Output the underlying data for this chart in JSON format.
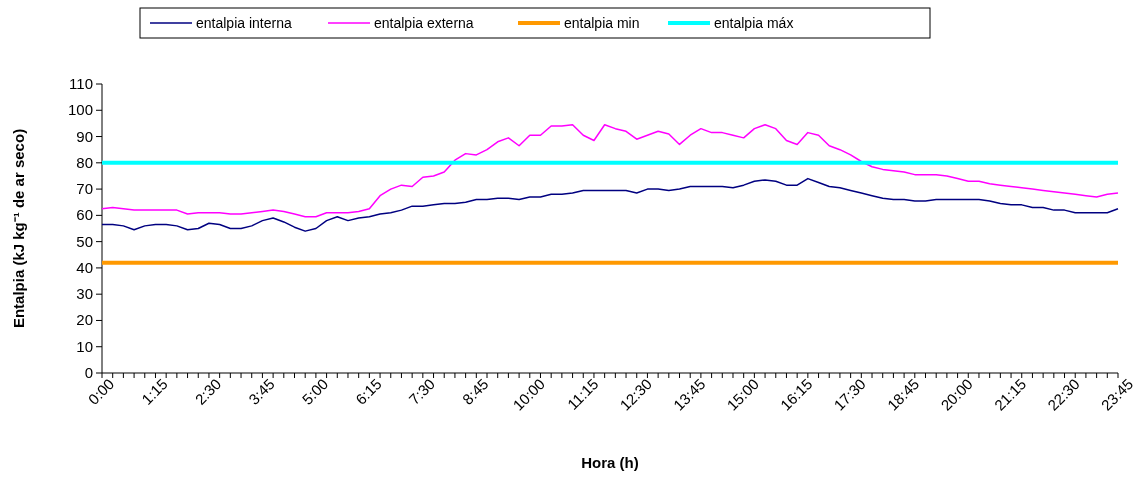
{
  "chart_data": {
    "type": "line",
    "xlabel": "Hora (h)",
    "ylabel": "Entalpia (kJ kg⁻¹ de ar seco)",
    "categories": [
      "0:00",
      null,
      null,
      null,
      null,
      "1:15",
      null,
      null,
      null,
      null,
      "2:30",
      null,
      null,
      null,
      null,
      "3:45",
      null,
      null,
      null,
      null,
      "5:00",
      null,
      null,
      null,
      null,
      "6:15",
      null,
      null,
      null,
      null,
      "7:30",
      null,
      null,
      null,
      null,
      "8:45",
      null,
      null,
      null,
      null,
      "10:00",
      null,
      null,
      null,
      null,
      "11:15",
      null,
      null,
      null,
      null,
      "12:30",
      null,
      null,
      null,
      null,
      "13:45",
      null,
      null,
      null,
      null,
      "15:00",
      null,
      null,
      null,
      null,
      "16:15",
      null,
      null,
      null,
      null,
      "17:30",
      null,
      null,
      null,
      null,
      "18:45",
      null,
      null,
      null,
      null,
      "20:00",
      null,
      null,
      null,
      null,
      "21:15",
      null,
      null,
      null,
      null,
      "22:30",
      null,
      null,
      null,
      null,
      "23:45"
    ],
    "ylim": [
      0,
      110
    ],
    "yticks": [
      0,
      10,
      20,
      30,
      40,
      50,
      60,
      70,
      80,
      90,
      100,
      110
    ],
    "legend": "top",
    "marker": "none",
    "series": [
      {
        "name": "entalpia interna",
        "color": "#000080",
        "values": [
          56.5,
          56.5,
          56,
          54.5,
          56,
          56.5,
          56.5,
          56,
          54.5,
          55,
          57,
          56.5,
          55,
          55,
          56,
          58,
          59,
          57.5,
          55.5,
          54,
          55,
          58,
          59.5,
          58,
          59,
          59.5,
          60.5,
          61,
          62,
          63.5,
          63.5,
          64,
          64.5,
          64.5,
          65,
          66,
          66,
          66.5,
          66.5,
          66,
          67,
          67,
          68,
          68,
          68.5,
          69.5,
          69.5,
          69.5,
          69.5,
          69.5,
          68.5,
          70,
          70,
          69.5,
          70,
          71,
          71,
          71,
          71,
          70.5,
          71.5,
          73,
          73.5,
          73,
          71.5,
          71.5,
          74,
          72.5,
          71,
          70.5,
          69.5,
          68.5,
          67.5,
          66.5,
          66,
          66,
          65.5,
          65.5,
          66,
          66,
          66,
          66,
          66,
          65.5,
          64.5,
          64,
          64,
          63,
          63,
          62,
          62,
          61,
          61,
          61,
          61,
          62.5
        ]
      },
      {
        "name": "entalpia externa",
        "color": "#ff00ff",
        "values": [
          62.5,
          63,
          62.5,
          62,
          62,
          62,
          62,
          62,
          60.5,
          61,
          61,
          61,
          60.5,
          60.5,
          61,
          61.5,
          62,
          61.5,
          60.5,
          59.5,
          59.5,
          61,
          61,
          61,
          61.5,
          62.5,
          67.5,
          70,
          71.5,
          71,
          74.5,
          75,
          76.5,
          81,
          83.5,
          83,
          85,
          88,
          89.5,
          86.5,
          90.5,
          90.5,
          94,
          94,
          94.5,
          90.5,
          88.5,
          94.5,
          93,
          92,
          89,
          90.5,
          92,
          91,
          87,
          90.5,
          93,
          91.5,
          91.5,
          90.5,
          89.5,
          93,
          94.5,
          93,
          88.5,
          87,
          91.5,
          90.5,
          86.5,
          85,
          83,
          80.5,
          78.5,
          77.5,
          77,
          76.5,
          75.5,
          75.5,
          75.5,
          75,
          74,
          73,
          73,
          72,
          71.5,
          71,
          70.5,
          70,
          69.5,
          69,
          68.5,
          68,
          67.5,
          67,
          68,
          68.5
        ]
      },
      {
        "name": "entalpia min",
        "color": "#ff9900",
        "values": [
          42,
          42,
          42,
          42,
          42,
          42,
          42,
          42,
          42,
          42,
          42,
          42,
          42,
          42,
          42,
          42,
          42,
          42,
          42,
          42,
          42,
          42,
          42,
          42,
          42,
          42,
          42,
          42,
          42,
          42,
          42,
          42,
          42,
          42,
          42,
          42,
          42,
          42,
          42,
          42,
          42,
          42,
          42,
          42,
          42,
          42,
          42,
          42,
          42,
          42,
          42,
          42,
          42,
          42,
          42,
          42,
          42,
          42,
          42,
          42,
          42,
          42,
          42,
          42,
          42,
          42,
          42,
          42,
          42,
          42,
          42,
          42,
          42,
          42,
          42,
          42,
          42,
          42,
          42,
          42,
          42,
          42,
          42,
          42,
          42,
          42,
          42,
          42,
          42,
          42,
          42,
          42,
          42,
          42,
          42,
          42
        ]
      },
      {
        "name": "entalpia máx",
        "color": "#00ffff",
        "values": [
          80,
          80,
          80,
          80,
          80,
          80,
          80,
          80,
          80,
          80,
          80,
          80,
          80,
          80,
          80,
          80,
          80,
          80,
          80,
          80,
          80,
          80,
          80,
          80,
          80,
          80,
          80,
          80,
          80,
          80,
          80,
          80,
          80,
          80,
          80,
          80,
          80,
          80,
          80,
          80,
          80,
          80,
          80,
          80,
          80,
          80,
          80,
          80,
          80,
          80,
          80,
          80,
          80,
          80,
          80,
          80,
          80,
          80,
          80,
          80,
          80,
          80,
          80,
          80,
          80,
          80,
          80,
          80,
          80,
          80,
          80,
          80,
          80,
          80,
          80,
          80,
          80,
          80,
          80,
          80,
          80,
          80,
          80,
          80,
          80,
          80,
          80,
          80,
          80,
          80,
          80,
          80,
          80,
          80,
          80,
          80
        ]
      }
    ]
  }
}
